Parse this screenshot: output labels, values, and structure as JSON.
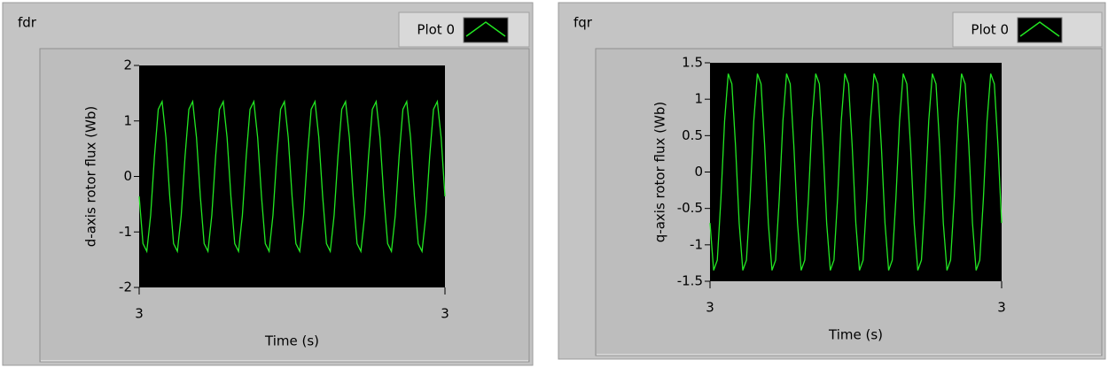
{
  "chart_data": [
    {
      "type": "line",
      "title": "fdr",
      "xlabel": "Time (s)",
      "ylabel": "d-axis rotor flux (Wb)",
      "x": [
        3,
        3.0025,
        3.005,
        3.0075,
        3.01,
        3.0125,
        3.015,
        3.0175,
        3.02,
        3.0225,
        3.025,
        3.0275,
        3.03,
        3.0325,
        3.035,
        3.0375,
        3.04,
        3.0425,
        3.045,
        3.0475,
        3.05,
        3.0525,
        3.055,
        3.0575,
        3.06,
        3.0625,
        3.065,
        3.0675,
        3.07,
        3.0725,
        3.075,
        3.0775,
        3.08,
        3.0825,
        3.085,
        3.0875,
        3.09,
        3.0925,
        3.095,
        3.0975,
        3.1,
        3.1025,
        3.105,
        3.1075,
        3.11,
        3.1125,
        3.115,
        3.1175,
        3.12,
        3.1225,
        3.125,
        3.1275,
        3.13,
        3.1325,
        3.135,
        3.1375,
        3.14,
        3.1425,
        3.145,
        3.1475,
        3.15,
        3.1525,
        3.155,
        3.1575,
        3.16,
        3.1625,
        3.165,
        3.1675,
        3.17,
        3.1725,
        3.175,
        3.1775,
        3.18,
        3.1825,
        3.185,
        3.1875,
        3.19,
        3.1925,
        3.195,
        3.1975,
        3.2
      ],
      "series": [
        {
          "name": "Plot 0",
          "color": "#22e622",
          "values": [
            -0.36,
            -1.21,
            -1.35,
            -0.7,
            0.36,
            1.21,
            1.35,
            0.7,
            -0.36,
            -1.21,
            -1.35,
            -0.7,
            0.36,
            1.21,
            1.35,
            0.7,
            -0.36,
            -1.21,
            -1.35,
            -0.7,
            0.36,
            1.21,
            1.35,
            0.7,
            -0.36,
            -1.21,
            -1.35,
            -0.7,
            0.36,
            1.21,
            1.35,
            0.7,
            -0.36,
            -1.21,
            -1.35,
            -0.7,
            0.36,
            1.21,
            1.35,
            0.7,
            -0.36,
            -1.21,
            -1.35,
            -0.7,
            0.36,
            1.21,
            1.35,
            0.7,
            -0.36,
            -1.21,
            -1.35,
            -0.7,
            0.36,
            1.21,
            1.35,
            0.7,
            -0.36,
            -1.21,
            -1.35,
            -0.7,
            0.36,
            1.21,
            1.35,
            0.7,
            -0.36,
            -1.21,
            -1.35,
            -0.7,
            0.36,
            1.21,
            1.35,
            0.7,
            -0.36,
            -1.21,
            -1.35,
            -0.7,
            0.36,
            1.21,
            1.35,
            0.7,
            -0.36
          ]
        }
      ],
      "xlim": [
        3,
        3.2
      ],
      "xticks": [
        {
          "value": 3,
          "label": "3"
        },
        {
          "value": 3.2,
          "label": "3"
        }
      ],
      "ylim": [
        -2,
        2
      ],
      "yticks": [
        -2,
        -1,
        0,
        1,
        2
      ]
    },
    {
      "type": "line",
      "title": "fqr",
      "xlabel": "Time (s)",
      "ylabel": "q-axis rotor flux (Wb)",
      "x": [
        3,
        3.0025,
        3.005,
        3.0075,
        3.01,
        3.0125,
        3.015,
        3.0175,
        3.02,
        3.0225,
        3.025,
        3.0275,
        3.03,
        3.0325,
        3.035,
        3.0375,
        3.04,
        3.0425,
        3.045,
        3.0475,
        3.05,
        3.0525,
        3.055,
        3.0575,
        3.06,
        3.0625,
        3.065,
        3.0675,
        3.07,
        3.0725,
        3.075,
        3.0775,
        3.08,
        3.0825,
        3.085,
        3.0875,
        3.09,
        3.0925,
        3.095,
        3.0975,
        3.1,
        3.1025,
        3.105,
        3.1075,
        3.11,
        3.1125,
        3.115,
        3.1175,
        3.12,
        3.1225,
        3.125,
        3.1275,
        3.13,
        3.1325,
        3.135,
        3.1375,
        3.14,
        3.1425,
        3.145,
        3.1475,
        3.15,
        3.1525,
        3.155,
        3.1575,
        3.16,
        3.1625,
        3.165,
        3.1675,
        3.17,
        3.1725,
        3.175,
        3.1775,
        3.18,
        3.1825,
        3.185,
        3.1875,
        3.19,
        3.1925,
        3.195,
        3.1975,
        3.2
      ],
      "series": [
        {
          "name": "Plot 0",
          "color": "#22e622",
          "values": [
            -0.7,
            -1.35,
            -1.21,
            -0.36,
            0.7,
            1.35,
            1.21,
            0.36,
            -0.7,
            -1.35,
            -1.21,
            -0.36,
            0.7,
            1.35,
            1.21,
            0.36,
            -0.7,
            -1.35,
            -1.21,
            -0.36,
            0.7,
            1.35,
            1.21,
            0.36,
            -0.7,
            -1.35,
            -1.21,
            -0.36,
            0.7,
            1.35,
            1.21,
            0.36,
            -0.7,
            -1.35,
            -1.21,
            -0.36,
            0.7,
            1.35,
            1.21,
            0.36,
            -0.7,
            -1.35,
            -1.21,
            -0.36,
            0.7,
            1.35,
            1.21,
            0.36,
            -0.7,
            -1.35,
            -1.21,
            -0.36,
            0.7,
            1.35,
            1.21,
            0.36,
            -0.7,
            -1.35,
            -1.21,
            -0.36,
            0.7,
            1.35,
            1.21,
            0.36,
            -0.7,
            -1.35,
            -1.21,
            -0.36,
            0.7,
            1.35,
            1.21,
            0.36,
            -0.7,
            -1.35,
            -1.21,
            -0.36,
            0.7,
            1.35,
            1.21,
            0.36,
            -0.7
          ]
        }
      ],
      "xlim": [
        3,
        3.2
      ],
      "xticks": [
        {
          "value": 3,
          "label": "3"
        },
        {
          "value": 3.2,
          "label": "3"
        }
      ],
      "ylim": [
        -1.5,
        1.5
      ],
      "yticks": [
        -1.5,
        -1,
        -0.5,
        0,
        0.5,
        1,
        1.5
      ]
    }
  ]
}
